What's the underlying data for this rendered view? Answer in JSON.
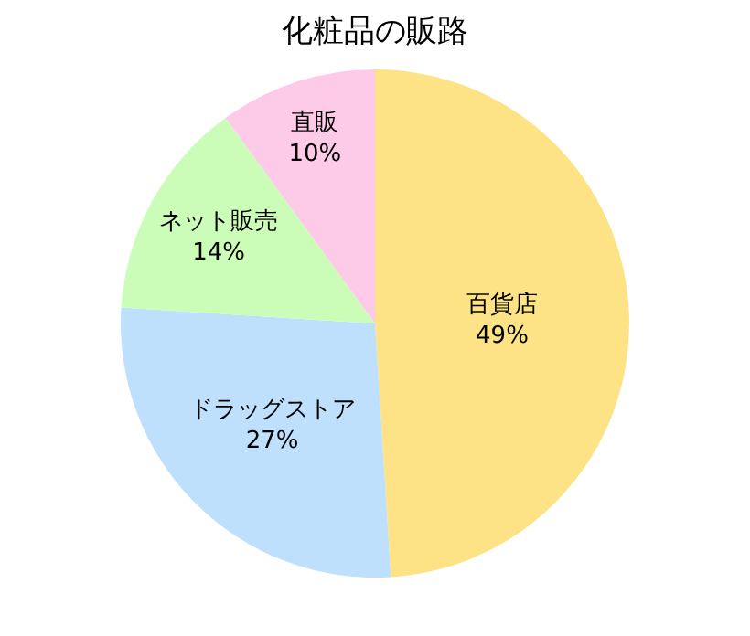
{
  "chart_data": {
    "type": "pie",
    "title": "化粧品の販路",
    "categories": [
      "百貨店",
      "ドラッグストア",
      "ネット販売",
      "直販"
    ],
    "values": [
      49,
      27,
      14,
      10
    ],
    "value_labels": [
      "49%",
      "27%",
      "14%",
      "10%"
    ],
    "colors": [
      "#fde385",
      "#bfe0fc",
      "#ccfdb8",
      "#fdcbe8"
    ],
    "legend": false
  }
}
